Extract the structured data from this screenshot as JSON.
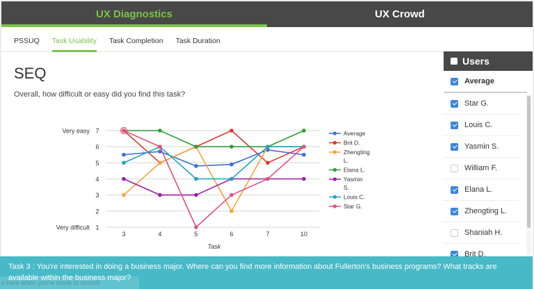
{
  "topbar": {
    "tabs": [
      {
        "label": "UX Diagnostics",
        "active": true
      },
      {
        "label": "UX Crowd",
        "active": false
      }
    ]
  },
  "subnav": {
    "tabs": [
      {
        "label": "PSSUQ",
        "active": false
      },
      {
        "label": "Task Usability",
        "active": true
      },
      {
        "label": "Task Completion",
        "active": false
      },
      {
        "label": "Task Duration",
        "active": false
      }
    ]
  },
  "main": {
    "title": "SEQ",
    "question": "Overall, how difficult or easy did you find this task?"
  },
  "users_panel": {
    "header": "Users",
    "header_checked": false,
    "items": [
      {
        "label": "Average",
        "checked": true
      },
      {
        "label": "Star G.",
        "checked": true
      },
      {
        "label": "Louis C.",
        "checked": true
      },
      {
        "label": "Yasmin S.",
        "checked": true
      },
      {
        "label": "William F.",
        "checked": false
      },
      {
        "label": "Elana L.",
        "checked": true
      },
      {
        "label": "Zhengting L.",
        "checked": true
      },
      {
        "label": "Shaniah H.",
        "checked": false
      },
      {
        "label": "Brit D.",
        "checked": true
      }
    ]
  },
  "banner": {
    "text": "Task 3 : You're interested in doing a business major. Where can you find more information about Fullerton's business programs? What tracks are available within the business major?"
  },
  "hint": {
    "text": "p here when you're ready to record!"
  },
  "colors": {
    "accent": "#7cc24a",
    "header_bg": "#484848",
    "banner_bg": "#47b9c7",
    "checkbox": "#3d85d8"
  },
  "chart_data": {
    "type": "line",
    "title": "",
    "xlabel": "Task",
    "ylabel": "",
    "categories": [
      "3",
      "4",
      "5",
      "6",
      "7",
      "10"
    ],
    "ylim": [
      1,
      7
    ],
    "yticks": [
      1,
      2,
      3,
      4,
      5,
      6,
      7
    ],
    "ytick_annotations": {
      "7": "Very easy",
      "1": "Very difficult"
    },
    "grid": true,
    "legend_position": "right",
    "series": [
      {
        "name": "Average",
        "color": "#3b6fd1",
        "values": [
          5.5,
          5.7,
          4.8,
          4.9,
          5.8,
          5.5
        ]
      },
      {
        "name": "Brit D.",
        "color": "#dc3b2d",
        "values": [
          7,
          5,
          6,
          7,
          5,
          6
        ]
      },
      {
        "name": "Zhengting L.",
        "color": "#f9a23a",
        "values": [
          3,
          5,
          6,
          2,
          6,
          6
        ]
      },
      {
        "name": "Elana L.",
        "color": "#2f9e36",
        "values": [
          7,
          7,
          6,
          6,
          6,
          7
        ]
      },
      {
        "name": "Yasmin S.",
        "color": "#9c1ea3",
        "values": [
          4,
          3,
          3,
          4,
          4,
          4
        ]
      },
      {
        "name": "Louis C.",
        "color": "#1ba3c4",
        "values": [
          5,
          6,
          4,
          4,
          6,
          6
        ]
      },
      {
        "name": "Star G.",
        "color": "#e2507f",
        "values": [
          7,
          6,
          1,
          3,
          4,
          6
        ]
      }
    ],
    "legend_labels": [
      "Average",
      "Brit D.",
      "Zhengting L.",
      "Elana L.",
      "Yasmin S.",
      "Louis C.",
      "Star G."
    ],
    "highlighted_point": {
      "series": "Star G.",
      "category": "3",
      "value": 7
    }
  }
}
